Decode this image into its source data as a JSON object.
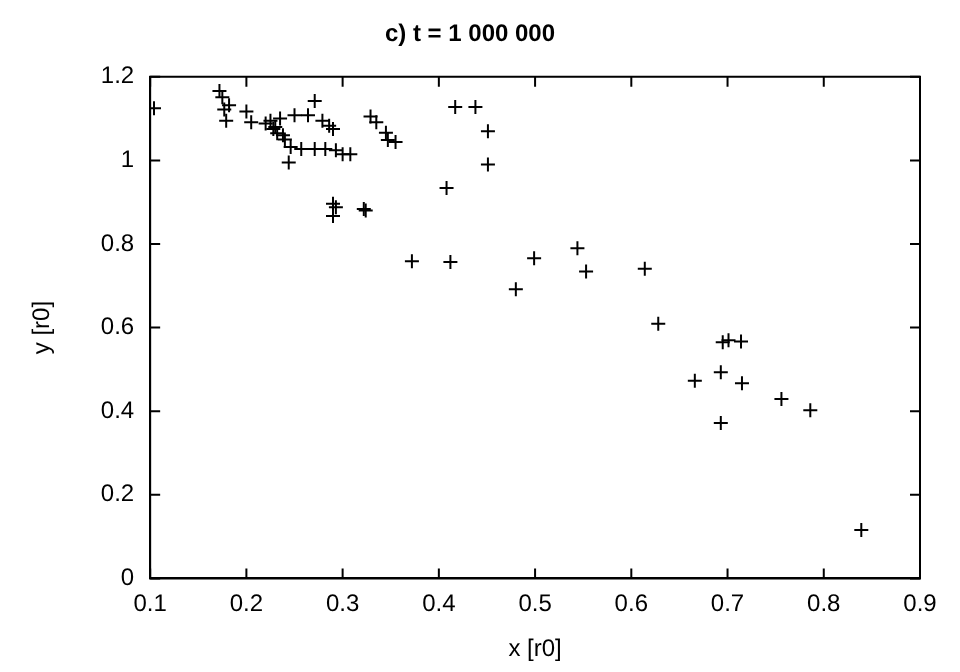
{
  "chart_data": {
    "type": "scatter",
    "title": "c) t = 1 000 000",
    "xlabel": "x [r0]",
    "ylabel": "y [r0]",
    "xlim": [
      0.1,
      0.9
    ],
    "ylim": [
      0,
      1.2
    ],
    "xticks": [
      0.1,
      0.2,
      0.3,
      0.4,
      0.5,
      0.6,
      0.7,
      0.8,
      0.9
    ],
    "yticks": [
      0,
      0.2,
      0.4,
      0.6,
      0.8,
      1,
      1.2
    ],
    "grid": false,
    "legend": false,
    "marker": "cross",
    "series": [
      {
        "color": "#000000",
        "x": [
          0.104,
          0.172,
          0.175,
          0.177,
          0.182,
          0.179,
          0.2,
          0.205,
          0.22,
          0.225,
          0.23,
          0.232,
          0.238,
          0.235,
          0.228,
          0.24,
          0.271,
          0.25,
          0.264,
          0.279,
          0.286,
          0.29,
          0.246,
          0.257,
          0.271,
          0.282,
          0.293,
          0.3,
          0.308,
          0.244,
          0.29,
          0.293,
          0.29,
          0.322,
          0.324,
          0.329,
          0.335,
          0.345,
          0.347,
          0.355,
          0.372,
          0.417,
          0.438,
          0.451,
          0.451,
          0.408,
          0.412,
          0.499,
          0.544,
          0.553,
          0.614,
          0.48,
          0.628,
          0.695,
          0.701,
          0.714,
          0.666,
          0.693,
          0.715,
          0.693,
          0.756,
          0.786,
          0.839
        ],
        "values": [
          1.125,
          1.166,
          1.151,
          1.122,
          1.132,
          1.095,
          1.117,
          1.091,
          1.088,
          1.095,
          1.08,
          1.065,
          1.06,
          1.1,
          1.075,
          1.05,
          1.142,
          1.108,
          1.108,
          1.095,
          1.083,
          1.075,
          1.032,
          1.027,
          1.027,
          1.027,
          1.024,
          1.015,
          1.015,
          0.995,
          0.896,
          0.888,
          0.867,
          0.884,
          0.88,
          1.105,
          1.091,
          1.066,
          1.049,
          1.044,
          0.759,
          1.128,
          1.128,
          1.07,
          0.99,
          0.934,
          0.757,
          0.766,
          0.79,
          0.734,
          0.741,
          0.692,
          0.609,
          0.565,
          0.57,
          0.567,
          0.473,
          0.493,
          0.467,
          0.372,
          0.429,
          0.402,
          0.116
        ]
      }
    ]
  }
}
